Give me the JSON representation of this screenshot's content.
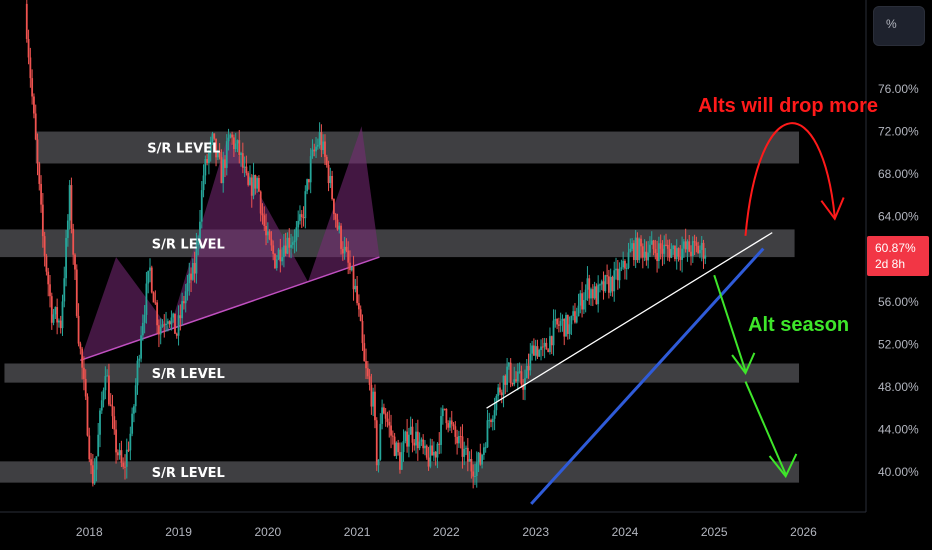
{
  "toolbar": {
    "scale_button_label": "%"
  },
  "price_tag": {
    "value": "60.87%",
    "countdown": "2d 8h",
    "color": "#f23645"
  },
  "colors": {
    "background": "#000000",
    "up_candle": "#26a69a",
    "down_candle": "#ef5350",
    "band": "#4a4a4d",
    "pattern_fill": "#7a2a78",
    "support_line": "#2f5bd8",
    "resistance_line": "#ffffff",
    "bear_arrow": "#ff1a1a",
    "bull_arrow": "#3ee62a"
  },
  "chart_data": {
    "type": "line",
    "x_ticks": [
      "2018",
      "2019",
      "2020",
      "2021",
      "2022",
      "2023",
      "2024",
      "2025",
      "2026"
    ],
    "y_ticks": [
      "76.00%",
      "72.00%",
      "68.00%",
      "64.00%",
      "60.00%",
      "56.00%",
      "52.00%",
      "48.00%",
      "44.00%",
      "40.00%"
    ],
    "xlim": [
      2017.0,
      2026.7
    ],
    "ylim": [
      37.0,
      84.0
    ],
    "series": [
      {
        "values_x": [
          2017.3,
          2017.4,
          2017.5,
          2017.6,
          2017.7,
          2017.8,
          2017.9,
          2018.0,
          2018.05,
          2018.1,
          2018.2,
          2018.3,
          2018.4,
          2018.5,
          2018.6,
          2018.7,
          2018.8,
          2018.9,
          2019.0,
          2019.1,
          2019.2,
          2019.3,
          2019.4,
          2019.5,
          2019.6,
          2019.7,
          2019.8,
          2019.9,
          2020.0,
          2020.1,
          2020.2,
          2020.3,
          2020.4,
          2020.5,
          2020.6,
          2020.7,
          2020.8,
          2020.9,
          2021.0,
          2021.05,
          2021.1,
          2021.2,
          2021.25,
          2021.3,
          2021.4,
          2021.5,
          2021.6,
          2021.7,
          2021.8,
          2021.9,
          2022.0,
          2022.1,
          2022.2,
          2022.3,
          2022.4,
          2022.5,
          2022.6,
          2022.7,
          2022.8,
          2022.9,
          2023.0,
          2023.1,
          2023.2,
          2023.3,
          2023.4,
          2023.5,
          2023.6,
          2023.7,
          2023.8,
          2023.9,
          2024.0,
          2024.1,
          2024.2,
          2024.3,
          2024.4,
          2024.5,
          2024.6,
          2024.7,
          2024.8,
          2024.9
        ],
        "values_y": [
          84.0,
          73.0,
          62.0,
          55.0,
          54.0,
          66.0,
          53.0,
          44.5,
          39.0,
          41.5,
          50.0,
          43.0,
          40.0,
          44.5,
          53.5,
          59.0,
          53.5,
          55.0,
          53.0,
          57.0,
          59.0,
          68.0,
          71.0,
          68.0,
          71.5,
          70.0,
          66.5,
          67.5,
          62.0,
          60.0,
          61.5,
          62.0,
          63.5,
          69.0,
          71.5,
          68.0,
          63.0,
          60.0,
          57.0,
          54.0,
          50.0,
          46.5,
          40.0,
          46.5,
          43.5,
          41.0,
          44.0,
          43.0,
          41.0,
          42.0,
          46.0,
          43.5,
          42.0,
          40.5,
          41.0,
          45.0,
          47.5,
          49.5,
          48.5,
          48.5,
          52.0,
          51.0,
          53.0,
          54.0,
          53.5,
          55.5,
          57.5,
          56.5,
          57.5,
          58.0,
          59.0,
          61.0,
          60.9,
          60.9,
          60.9,
          60.9,
          60.9,
          60.9,
          60.9,
          60.87
        ]
      }
    ],
    "bands": [
      {
        "label": "S/R LEVEL",
        "y_low": 69.0,
        "y_high": 72.0,
        "x_start": 2017.4,
        "x_end": 2025.95
      },
      {
        "label": "S/R LEVEL",
        "y_low": 60.2,
        "y_high": 62.8,
        "x_start": 2016.95,
        "x_end": 2025.9
      },
      {
        "label": "S/R LEVEL",
        "y_low": 48.4,
        "y_high": 50.2,
        "x_start": 2017.05,
        "x_end": 2025.95
      },
      {
        "label": "S/R LEVEL",
        "y_low": 39.0,
        "y_high": 41.0,
        "x_start": 2016.9,
        "x_end": 2025.95
      }
    ],
    "annotations": [
      {
        "text": "Alts will drop more",
        "color": "#ff1a1a"
      },
      {
        "text": "Alt season",
        "color": "#3ee62a"
      }
    ],
    "pattern_peaks": [
      {
        "x": 2017.9,
        "y": 50.5
      },
      {
        "x": 2018.3,
        "y": 60.2
      },
      {
        "x": 2018.9,
        "y": 53.5
      },
      {
        "x": 2019.55,
        "y": 71.5
      },
      {
        "x": 2020.45,
        "y": 57.0
      },
      {
        "x": 2021.05,
        "y": 72.5
      },
      {
        "x": 2021.25,
        "y": 60.0
      }
    ],
    "resistance_line": {
      "x0": 2022.45,
      "y0": 46.0,
      "x1": 2025.65,
      "y1": 62.5
    },
    "support_line": {
      "x0": 2022.95,
      "y0": 37.0,
      "x1": 2025.55,
      "y1": 61.0
    }
  }
}
